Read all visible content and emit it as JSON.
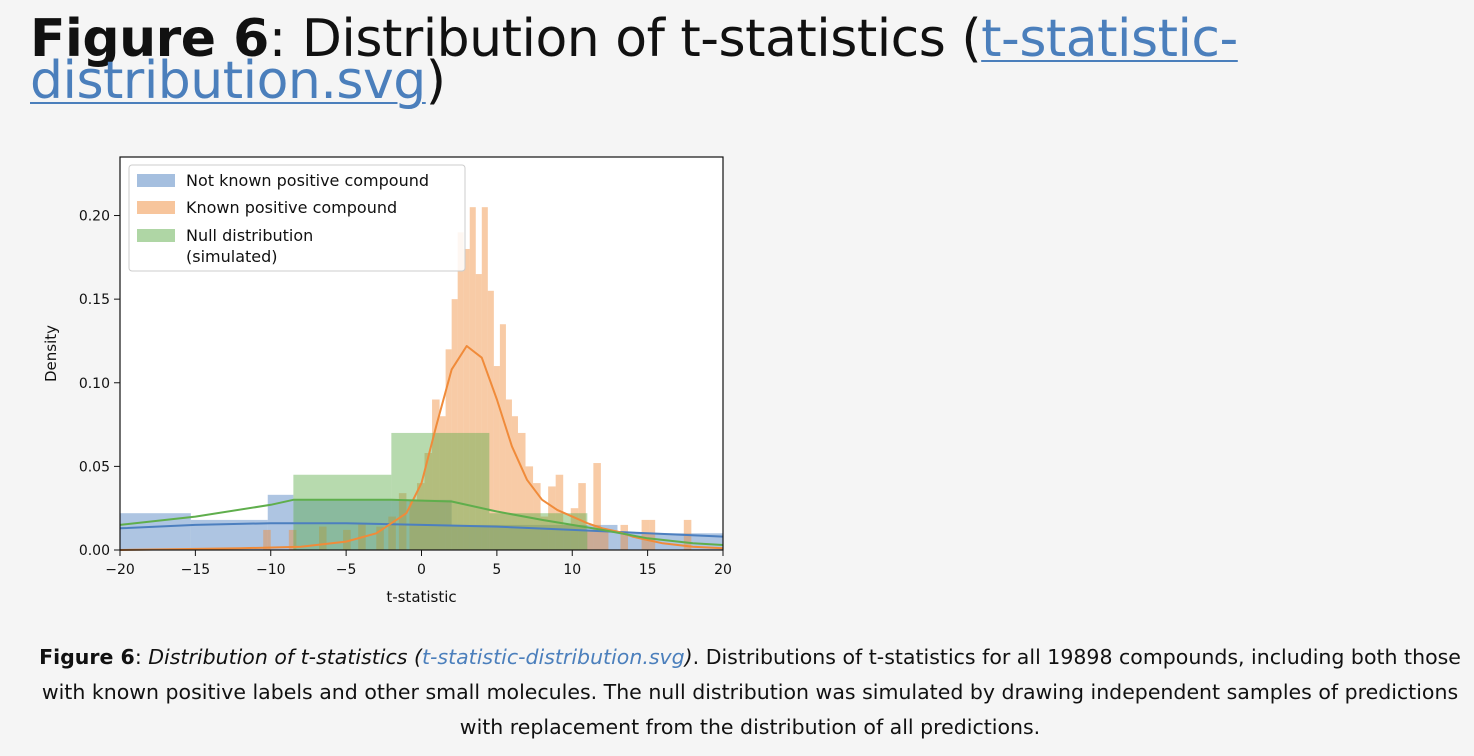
{
  "heading": {
    "label": "Figure 6",
    "sep": ": ",
    "text": "Distribution of t-statistics (",
    "link": "t-statistic-distribution.svg",
    "close": ")"
  },
  "caption": {
    "label": "Figure 6",
    "sep": ": ",
    "title_italic": "Distribution of t-statistics (",
    "link": "t-statistic-distribution.svg",
    "close_italic": ")",
    "body": ". Distributions of t-statistics for all 19898 compounds, including both those with known positive labels and other small molecules. The null distribution was simulated by drawing independent samples of predictions with replacement from the distribution of all predictions."
  },
  "chart_data": {
    "type": "histogram",
    "xlabel": "t-statistic",
    "ylabel": "Density",
    "xlim": [
      -20,
      20
    ],
    "ylim": [
      0,
      0.235
    ],
    "xticks": [
      -20,
      -15,
      -10,
      -5,
      0,
      5,
      10,
      15,
      20
    ],
    "xtick_labels": [
      "−20",
      "−15",
      "−10",
      "−5",
      "0",
      "5",
      "10",
      "15",
      "20"
    ],
    "yticks": [
      0.0,
      0.05,
      0.1,
      0.15,
      0.2
    ],
    "ytick_labels": [
      "0.00",
      "0.05",
      "0.10",
      "0.15",
      "0.20"
    ],
    "legend_position": "top-left",
    "series": [
      {
        "name": "Not known positive compound",
        "color": "#4c7fbf",
        "bins": [
          {
            "x0": -20,
            "x1": -15.3,
            "y": 0.022
          },
          {
            "x0": -15.3,
            "x1": -10.2,
            "y": 0.018
          },
          {
            "x0": -10.2,
            "x1": -8.5,
            "y": 0.033
          },
          {
            "x0": -8.5,
            "x1": 2.0,
            "y": 0.03
          },
          {
            "x0": 2.0,
            "x1": 13.0,
            "y": 0.015
          },
          {
            "x0": 13.0,
            "x1": 20,
            "y": 0.01
          }
        ],
        "kde": [
          [
            -20,
            0.013
          ],
          [
            -15,
            0.015
          ],
          [
            -10,
            0.016
          ],
          [
            -5,
            0.016
          ],
          [
            0,
            0.015
          ],
          [
            5,
            0.014
          ],
          [
            10,
            0.012
          ],
          [
            15,
            0.01
          ],
          [
            20,
            0.008
          ]
        ]
      },
      {
        "name": "Known positive compound",
        "color": "#f08b3a",
        "bins": [
          {
            "x0": -10.5,
            "x1": -10.0,
            "y": 0.012
          },
          {
            "x0": -8.8,
            "x1": -8.3,
            "y": 0.012
          },
          {
            "x0": -6.8,
            "x1": -6.3,
            "y": 0.014
          },
          {
            "x0": -5.2,
            "x1": -4.7,
            "y": 0.012
          },
          {
            "x0": -4.2,
            "x1": -3.7,
            "y": 0.016
          },
          {
            "x0": -3.0,
            "x1": -2.5,
            "y": 0.014
          },
          {
            "x0": -2.2,
            "x1": -1.7,
            "y": 0.02
          },
          {
            "x0": -1.5,
            "x1": -1.0,
            "y": 0.034
          },
          {
            "x0": -0.8,
            "x1": -0.3,
            "y": 0.03
          },
          {
            "x0": -0.3,
            "x1": 0.2,
            "y": 0.04
          },
          {
            "x0": 0.2,
            "x1": 0.7,
            "y": 0.058
          },
          {
            "x0": 0.7,
            "x1": 1.2,
            "y": 0.09
          },
          {
            "x0": 1.2,
            "x1": 1.6,
            "y": 0.08
          },
          {
            "x0": 1.6,
            "x1": 2.0,
            "y": 0.12
          },
          {
            "x0": 2.0,
            "x1": 2.4,
            "y": 0.15
          },
          {
            "x0": 2.4,
            "x1": 2.8,
            "y": 0.19
          },
          {
            "x0": 2.8,
            "x1": 3.2,
            "y": 0.18
          },
          {
            "x0": 3.2,
            "x1": 3.6,
            "y": 0.205
          },
          {
            "x0": 3.6,
            "x1": 4.0,
            "y": 0.165
          },
          {
            "x0": 4.0,
            "x1": 4.4,
            "y": 0.205
          },
          {
            "x0": 4.4,
            "x1": 4.8,
            "y": 0.155
          },
          {
            "x0": 4.8,
            "x1": 5.2,
            "y": 0.11
          },
          {
            "x0": 5.2,
            "x1": 5.6,
            "y": 0.135
          },
          {
            "x0": 5.6,
            "x1": 6.0,
            "y": 0.09
          },
          {
            "x0": 6.0,
            "x1": 6.4,
            "y": 0.08
          },
          {
            "x0": 6.4,
            "x1": 6.9,
            "y": 0.07
          },
          {
            "x0": 6.9,
            "x1": 7.4,
            "y": 0.05
          },
          {
            "x0": 7.4,
            "x1": 7.9,
            "y": 0.04
          },
          {
            "x0": 7.9,
            "x1": 8.4,
            "y": 0.02
          },
          {
            "x0": 8.4,
            "x1": 8.9,
            "y": 0.038
          },
          {
            "x0": 8.9,
            "x1": 9.4,
            "y": 0.045
          },
          {
            "x0": 9.4,
            "x1": 9.9,
            "y": 0.015
          },
          {
            "x0": 9.9,
            "x1": 10.4,
            "y": 0.025
          },
          {
            "x0": 10.4,
            "x1": 10.9,
            "y": 0.04
          },
          {
            "x0": 10.9,
            "x1": 11.4,
            "y": 0.012
          },
          {
            "x0": 11.4,
            "x1": 11.9,
            "y": 0.052
          },
          {
            "x0": 11.9,
            "x1": 12.4,
            "y": 0.012
          },
          {
            "x0": 13.2,
            "x1": 13.7,
            "y": 0.015
          },
          {
            "x0": 14.6,
            "x1": 15.1,
            "y": 0.018
          },
          {
            "x0": 15.1,
            "x1": 15.5,
            "y": 0.018
          },
          {
            "x0": 17.4,
            "x1": 17.9,
            "y": 0.018
          }
        ],
        "kde": [
          [
            -20,
            0.0
          ],
          [
            -12,
            0.001
          ],
          [
            -8,
            0.002
          ],
          [
            -5,
            0.005
          ],
          [
            -3,
            0.01
          ],
          [
            -1,
            0.022
          ],
          [
            0,
            0.04
          ],
          [
            1,
            0.075
          ],
          [
            2,
            0.108
          ],
          [
            3,
            0.122
          ],
          [
            4,
            0.115
          ],
          [
            5,
            0.09
          ],
          [
            6,
            0.062
          ],
          [
            7,
            0.042
          ],
          [
            8,
            0.03
          ],
          [
            9,
            0.024
          ],
          [
            10,
            0.02
          ],
          [
            11,
            0.016
          ],
          [
            12,
            0.013
          ],
          [
            13,
            0.011
          ],
          [
            14,
            0.008
          ],
          [
            15,
            0.006
          ],
          [
            16,
            0.004
          ],
          [
            18,
            0.002
          ],
          [
            20,
            0.001
          ]
        ]
      },
      {
        "name": "Null distribution\n(simulated)",
        "color": "#5fae4c",
        "bins": [
          {
            "x0": -8.5,
            "x1": -2.0,
            "y": 0.045
          },
          {
            "x0": -2.0,
            "x1": 4.5,
            "y": 0.07
          },
          {
            "x0": 4.5,
            "x1": 11.0,
            "y": 0.022
          }
        ],
        "kde": [
          [
            -20,
            0.015
          ],
          [
            -15,
            0.02
          ],
          [
            -10,
            0.027
          ],
          [
            -8.5,
            0.03
          ],
          [
            -5,
            0.03
          ],
          [
            -2,
            0.03
          ],
          [
            2,
            0.029
          ],
          [
            5,
            0.023
          ],
          [
            8,
            0.018
          ],
          [
            10,
            0.015
          ],
          [
            12,
            0.012
          ],
          [
            15,
            0.007
          ],
          [
            18,
            0.004
          ],
          [
            20,
            0.003
          ]
        ]
      }
    ]
  }
}
